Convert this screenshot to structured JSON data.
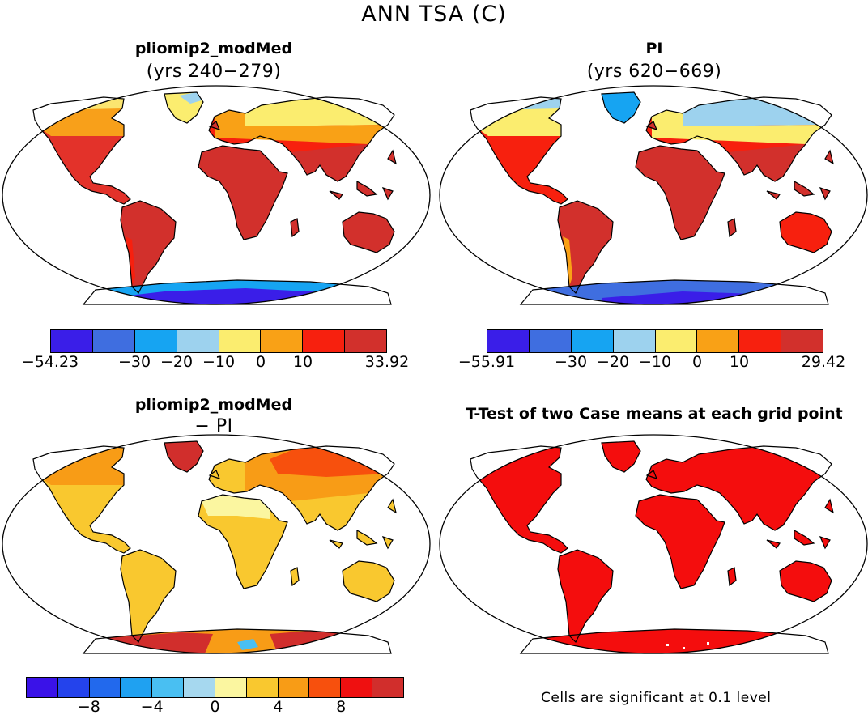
{
  "figure": {
    "title": "ANN TSA (C)",
    "footnote": "Cells are significant at 0.1 level"
  },
  "panels": [
    {
      "title": "pliomip2_modMed",
      "subtitle": "(yrs 240−279)",
      "colorbar": {
        "colors": [
          "#3a1ee8",
          "#3f6ee0",
          "#16a4f2",
          "#9dd2ee",
          "#fbed6f",
          "#f9a116",
          "#f7200e",
          "#d2302c"
        ],
        "labels": [
          "−54.23",
          "−30",
          "−20",
          "−10",
          "0",
          "10",
          "33.92"
        ],
        "label_positions": [
          0,
          0.25,
          0.375,
          0.5,
          0.625,
          0.75,
          1
        ]
      }
    },
    {
      "title": "PI",
      "subtitle": "(yrs 620−669)",
      "colorbar": {
        "colors": [
          "#3a1ee8",
          "#3f6ee0",
          "#16a4f2",
          "#9dd2ee",
          "#fbed6f",
          "#f9a116",
          "#f7200e",
          "#d2302c"
        ],
        "labels": [
          "−55.91",
          "−30",
          "−20",
          "−10",
          "0",
          "10",
          "29.42"
        ],
        "label_positions": [
          0,
          0.25,
          0.375,
          0.5,
          0.625,
          0.75,
          1
        ]
      }
    },
    {
      "title": "pliomip2_modMed",
      "subtitle": "− PI",
      "colorbar": {
        "colors": [
          "#3a12e8",
          "#2443ec",
          "#2269ed",
          "#1fa1f1",
          "#49bff2",
          "#a6d8ef",
          "#fbf6a0",
          "#f9c82f",
          "#f89c16",
          "#f7500d",
          "#ef1010",
          "#d12e2c"
        ],
        "labels": [
          "−8",
          "−4",
          "0",
          "4",
          "8"
        ],
        "label_positions": [
          0.1667,
          0.3333,
          0.5,
          0.6667,
          0.8333
        ]
      }
    },
    {
      "title": "T-Test of two Case means at each grid point"
    }
  ]
}
